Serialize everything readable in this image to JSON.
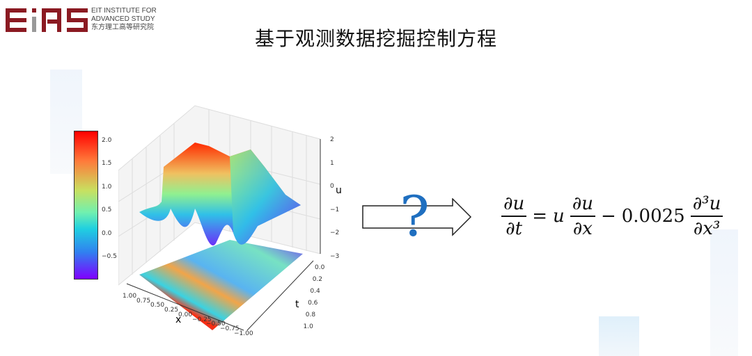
{
  "logo": {
    "mark": "EIAS",
    "lines": [
      "EIT INSTITUTE FOR",
      "ADVANCED STUDY",
      "东方理工高等研究院"
    ],
    "color": "#8b1a22"
  },
  "title": "基于观测数据挖掘控制方程",
  "plot": {
    "colormap": "rainbow",
    "colorbar_ticks": [
      "2.0",
      "1.5",
      "1.0",
      "0.5",
      "0.0",
      "−0.5"
    ],
    "u_ticks": [
      "2",
      "1",
      "0",
      "−1",
      "−2",
      "−3"
    ],
    "x_ticks": [
      "1.00",
      "0.75",
      "0.50",
      "0.25",
      "0.00",
      "−0.25",
      "−0.50",
      "−0.75",
      "−1.00"
    ],
    "t_ticks": [
      "0.0",
      "0.2",
      "0.4",
      "0.6",
      "0.8",
      "1.0"
    ],
    "x_label": "x",
    "t_label": "t",
    "u_label": "u"
  },
  "question_mark": "?",
  "question_color": "#1f6fc0",
  "equation": {
    "lhs_num": "∂u",
    "lhs_den": "∂t",
    "eq": "=",
    "u": "u",
    "mid_num": "∂u",
    "mid_den": "∂x",
    "minus": "−",
    "coef": "0.0025",
    "rhs_num": "∂³u",
    "rhs_den": "∂x³"
  }
}
